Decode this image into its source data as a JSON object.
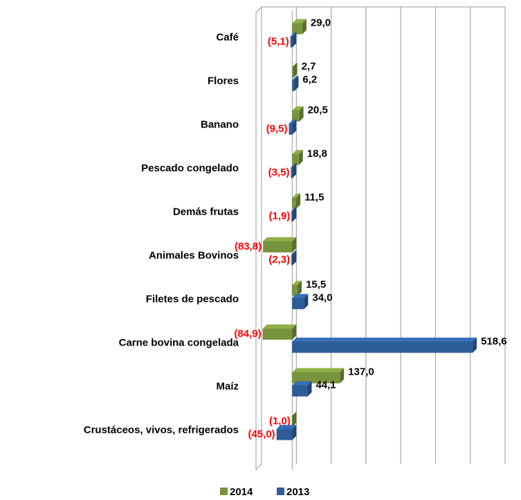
{
  "chart_data": {
    "type": "bar",
    "orientation": "horizontal",
    "categories": [
      "Café",
      "Flores",
      "Banano",
      "Pescado congelado",
      "Demás frutas",
      "Animales Bovinos",
      "Filetes de pescado",
      "Carne bovina congelada",
      "Maíz",
      "Crustáceos, vivos, refrigerados"
    ],
    "series": [
      {
        "name": "2014",
        "color": "#77933c",
        "values": [
          29.0,
          2.7,
          20.5,
          18.8,
          11.5,
          -83.8,
          15.5,
          -84.9,
          137.0,
          -1.0
        ],
        "value_labels": [
          "29,0",
          "2,7",
          "20,5",
          "18,8",
          "11,5",
          "(83,8)",
          "15,5",
          "(84,9)",
          "137,0",
          "(1,0)"
        ]
      },
      {
        "name": "2013",
        "color": "#2e5c99",
        "values": [
          -5.1,
          6.2,
          -9.5,
          -3.5,
          -1.9,
          -2.3,
          34.0,
          518.6,
          44.1,
          -45.0
        ],
        "value_labels": [
          "(5,1)",
          "6,2",
          "(9,5)",
          "(3,5)",
          "(1,9)",
          "(2,3)",
          "34,0",
          "518,6",
          "44,1",
          "(45,0)"
        ]
      }
    ],
    "xlim": [
      -100,
      600
    ],
    "xticks": [
      -100,
      0,
      100,
      200,
      300,
      400,
      500,
      600
    ],
    "grid": true,
    "legend": "bottom"
  }
}
